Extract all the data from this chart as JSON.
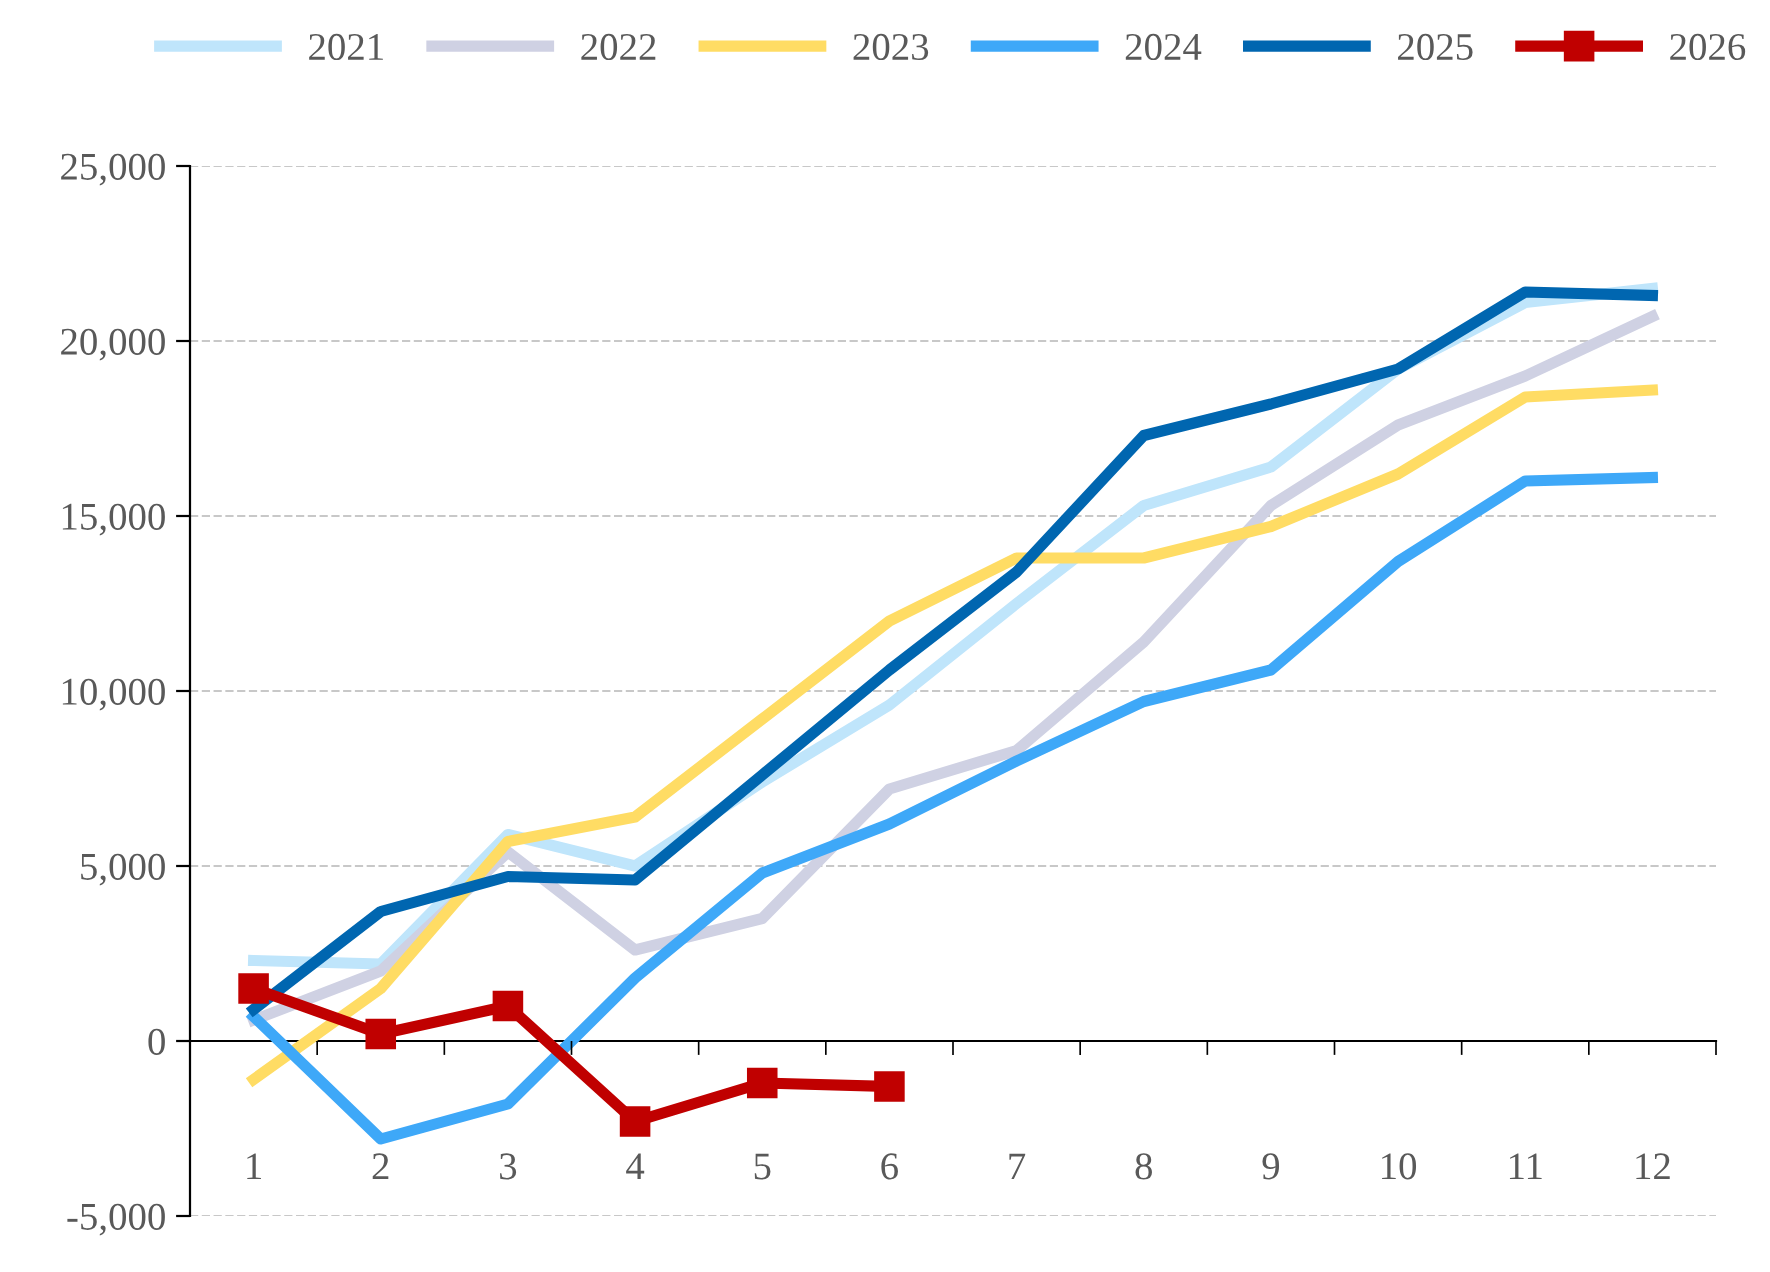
{
  "chart_data": {
    "type": "line",
    "categories": [
      "1",
      "2",
      "3",
      "4",
      "5",
      "6",
      "7",
      "8",
      "9",
      "10",
      "11",
      "12"
    ],
    "series": [
      {
        "name": "2021",
        "color": "#bfe5fb",
        "values": [
          2300,
          2200,
          5900,
          5000,
          7400,
          9600,
          12500,
          15300,
          16400,
          19200,
          21100,
          21500
        ]
      },
      {
        "name": "2022",
        "color": "#cfd1e3",
        "values": [
          600,
          2000,
          5400,
          2600,
          3500,
          7200,
          8300,
          11400,
          15300,
          17600,
          19000,
          20700
        ]
      },
      {
        "name": "2023",
        "color": "#ffdc64",
        "values": [
          -1100,
          1500,
          5700,
          6400,
          9200,
          12000,
          13800,
          13800,
          14700,
          16200,
          18400,
          18600
        ]
      },
      {
        "name": "2024",
        "color": "#3ea8f8",
        "values": [
          700,
          -2800,
          -1800,
          1800,
          4800,
          6200,
          8000,
          9700,
          10600,
          13700,
          16000,
          16100
        ]
      },
      {
        "name": "2025",
        "color": "#0066b0",
        "values": [
          900,
          3700,
          4700,
          4600,
          7600,
          10600,
          13400,
          17300,
          18200,
          19200,
          21400,
          21300
        ]
      },
      {
        "name": "2026",
        "color": "#c00000",
        "marker": "square",
        "values": [
          1500,
          200,
          1000,
          -2300,
          -1200,
          -1300,
          null,
          null,
          null,
          null,
          null,
          null
        ]
      }
    ],
    "ylim": [
      -5000,
      25000
    ],
    "yticks": [
      {
        "value": -5000,
        "label": "-5,000"
      },
      {
        "value": 0,
        "label": "0"
      },
      {
        "value": 5000,
        "label": "5,000"
      },
      {
        "value": 10000,
        "label": "10,000"
      },
      {
        "value": 15000,
        "label": "15,000"
      },
      {
        "value": 20000,
        "label": "20,000"
      },
      {
        "value": 25000,
        "label": "25,000"
      }
    ],
    "grid": "y",
    "legend": "top",
    "marker": "none",
    "line_style": "solid"
  }
}
